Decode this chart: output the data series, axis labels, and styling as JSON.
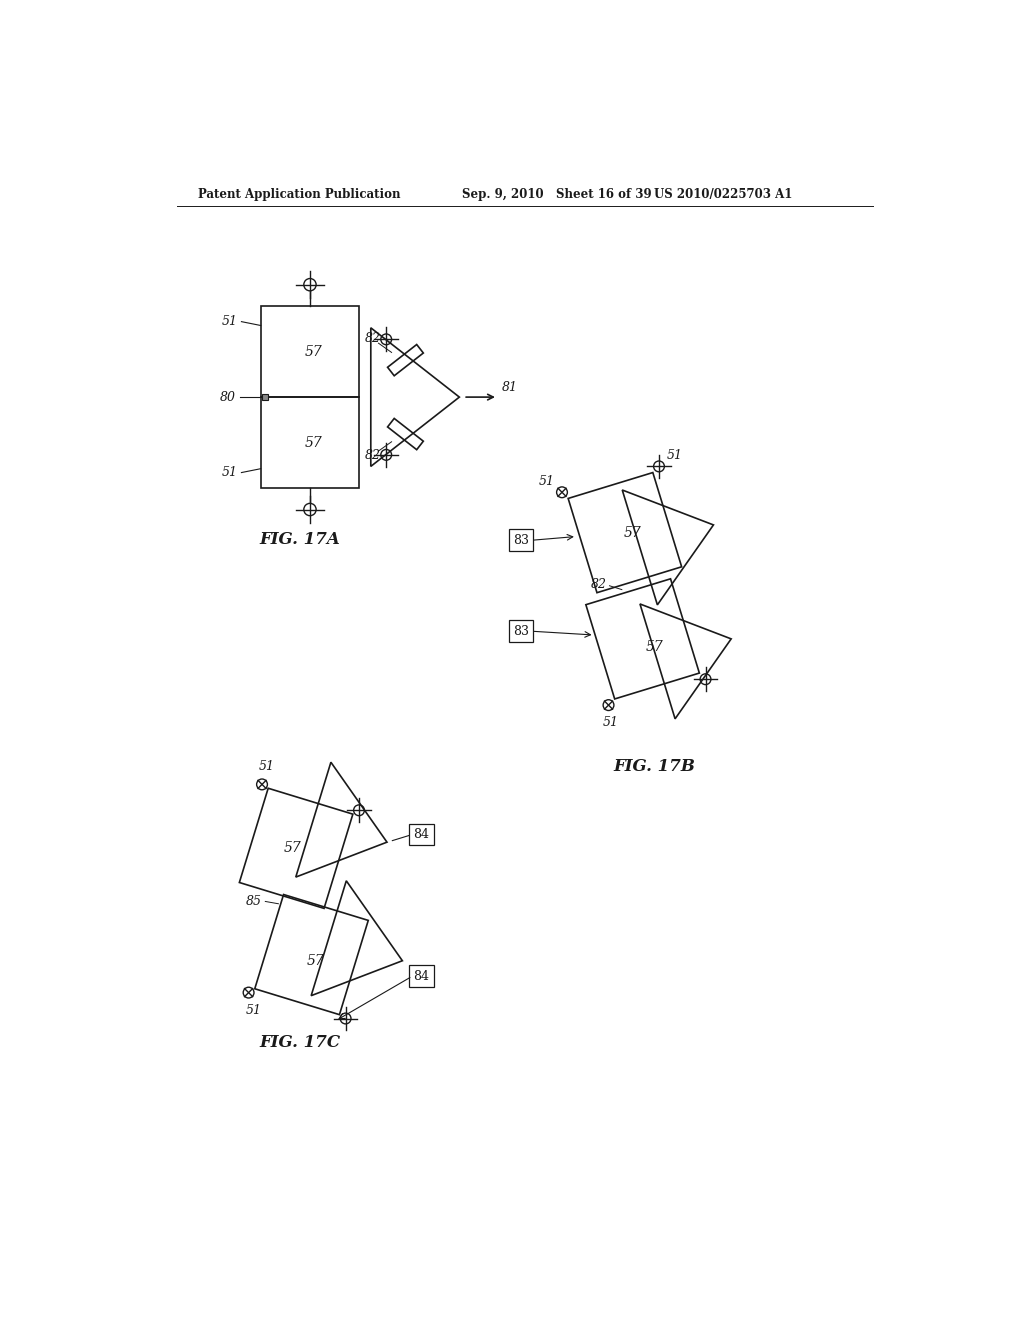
{
  "background_color": "#ffffff",
  "line_color": "#1a1a1a",
  "text_color": "#1a1a1a",
  "header_text_left": "Patent Application Publication",
  "header_text_mid": "Sep. 9, 2010   Sheet 16 of 39",
  "header_text_right": "US 2010/0225703 A1",
  "fig17a_label": "FIG. 17A",
  "fig17b_label": "FIG. 17B",
  "fig17c_label": "FIG. 17C"
}
